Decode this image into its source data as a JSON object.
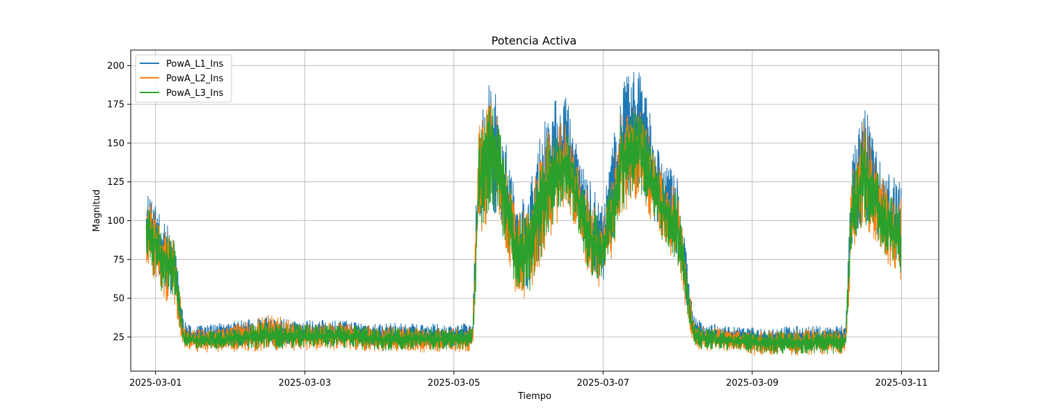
{
  "chart_data": {
    "type": "line",
    "title": "Potencia Activa",
    "xlabel": "Tiempo",
    "ylabel": "Magnitud",
    "grid": true,
    "legend_position": "top-left",
    "xlim": [
      "2025-02-28T16:00",
      "2025-03-11T12:00"
    ],
    "ylim": [
      3,
      210
    ],
    "x_ticks": [
      "2025-03-01",
      "2025-03-03",
      "2025-03-05",
      "2025-03-07",
      "2025-03-09",
      "2025-03-11"
    ],
    "y_ticks": [
      25,
      50,
      75,
      100,
      125,
      150,
      175,
      200
    ],
    "x": [
      "2025-02-28T21:00",
      "2025-03-01T00:00",
      "2025-03-01T03:00",
      "2025-03-01T06:00",
      "2025-03-01T09:00",
      "2025-03-01T12:00",
      "2025-03-01T18:00",
      "2025-03-02T00:00",
      "2025-03-02T12:00",
      "2025-03-03T00:00",
      "2025-03-03T12:00",
      "2025-03-04T00:00",
      "2025-03-04T12:00",
      "2025-03-05T00:00",
      "2025-03-05T06:00",
      "2025-03-05T08:00",
      "2025-03-05T12:00",
      "2025-03-05T16:00",
      "2025-03-05T20:00",
      "2025-03-06T00:00",
      "2025-03-06T06:00",
      "2025-03-06T12:00",
      "2025-03-06T16:00",
      "2025-03-06T20:00",
      "2025-03-07T00:00",
      "2025-03-07T06:00",
      "2025-03-07T12:00",
      "2025-03-07T18:00",
      "2025-03-08T00:00",
      "2025-03-08T05:00",
      "2025-03-08T08:00",
      "2025-03-08T12:00",
      "2025-03-08T21:00",
      "2025-03-09T00:00",
      "2025-03-09T12:00",
      "2025-03-10T00:00",
      "2025-03-10T06:00",
      "2025-03-10T08:00",
      "2025-03-10T12:00",
      "2025-03-10T16:00",
      "2025-03-10T20:00",
      "2025-03-11T00:00"
    ],
    "series": [
      {
        "name": "PowA_L1_Ins",
        "color": "#1f77b4",
        "low": [
          72,
          62,
          52,
          48,
          22,
          20,
          19,
          19,
          19,
          20,
          20,
          19,
          19,
          19,
          21,
          90,
          110,
          90,
          60,
          55,
          90,
          115,
          95,
          65,
          60,
          110,
          120,
          90,
          75,
          22,
          20,
          20,
          20,
          18,
          18,
          18,
          18,
          80,
          100,
          90,
          75,
          62
        ],
        "high": [
          125,
          110,
          100,
          95,
          35,
          32,
          33,
          35,
          38,
          36,
          36,
          34,
          34,
          33,
          34,
          170,
          196,
          160,
          115,
          120,
          175,
          183,
          145,
          125,
          110,
          190,
          200,
          145,
          130,
          40,
          34,
          33,
          31,
          31,
          32,
          32,
          33,
          140,
          178,
          145,
          130,
          125
        ]
      },
      {
        "name": "PowA_L2_Ins",
        "color": "#ff7f0e",
        "low": [
          70,
          60,
          48,
          44,
          18,
          15,
          15,
          15,
          16,
          16,
          17,
          15,
          15,
          15,
          16,
          85,
          105,
          85,
          52,
          48,
          85,
          110,
          90,
          60,
          55,
          100,
          115,
          85,
          70,
          18,
          16,
          16,
          15,
          13,
          13,
          13,
          14,
          75,
          95,
          85,
          70,
          55
        ],
        "high": [
          120,
          105,
          95,
          90,
          32,
          30,
          30,
          32,
          40,
          34,
          34,
          32,
          32,
          31,
          31,
          160,
          180,
          150,
          105,
          110,
          160,
          165,
          135,
          115,
          100,
          170,
          175,
          135,
          120,
          36,
          32,
          31,
          29,
          29,
          30,
          30,
          30,
          130,
          168,
          135,
          120,
          115
        ]
      },
      {
        "name": "PowA_L3_Ins",
        "color": "#2ca02c",
        "low": [
          72,
          62,
          50,
          46,
          20,
          17,
          17,
          17,
          17,
          18,
          18,
          16,
          17,
          17,
          18,
          88,
          108,
          88,
          55,
          52,
          88,
          112,
          92,
          62,
          58,
          105,
          118,
          88,
          72,
          20,
          17,
          17,
          16,
          14,
          14,
          14,
          15,
          78,
          98,
          88,
          72,
          58
        ],
        "high": [
          118,
          102,
          92,
          88,
          30,
          28,
          29,
          30,
          35,
          33,
          33,
          31,
          31,
          30,
          30,
          155,
          178,
          148,
          102,
          108,
          155,
          160,
          130,
          112,
          98,
          165,
          172,
          132,
          118,
          34,
          31,
          30,
          28,
          28,
          29,
          29,
          29,
          128,
          160,
          132,
          118,
          112
        ]
      }
    ]
  }
}
